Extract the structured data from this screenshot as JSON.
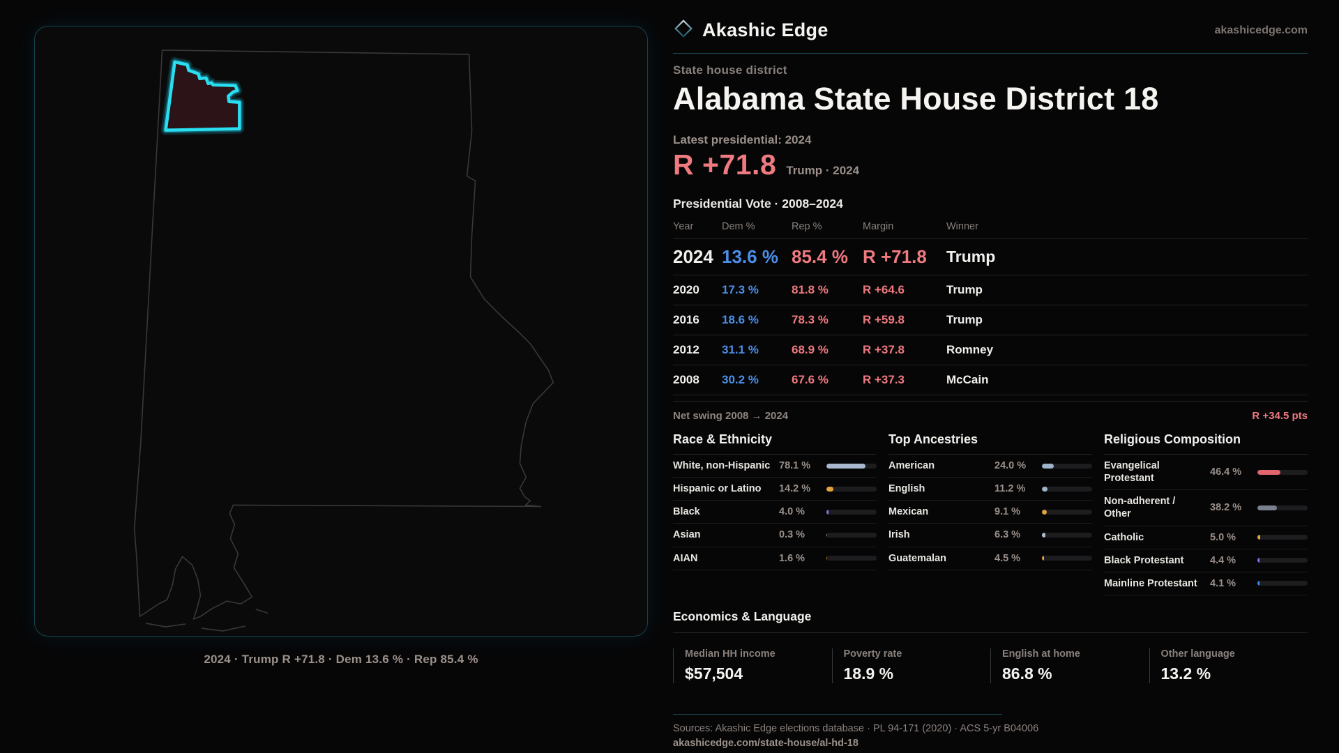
{
  "brand": {
    "name": "Akashic Edge",
    "site": "akashicedge.com"
  },
  "header": {
    "kicker": "State house district",
    "title": "Alabama State House District 18"
  },
  "latest": {
    "label": "Latest presidential: 2024",
    "margin": "R +71.8",
    "detail": "Trump · 2024"
  },
  "table": {
    "title": "Presidential Vote · 2008–2024",
    "columns": [
      "Year",
      "Dem %",
      "Rep %",
      "Margin",
      "Winner"
    ],
    "rows": [
      {
        "year": "2024",
        "dem": "13.6 %",
        "rep": "85.4 %",
        "margin": "R +71.8",
        "winner": "Trump",
        "featured": true
      },
      {
        "year": "2020",
        "dem": "17.3 %",
        "rep": "81.8 %",
        "margin": "R +64.6",
        "winner": "Trump",
        "featured": false
      },
      {
        "year": "2016",
        "dem": "18.6 %",
        "rep": "78.3 %",
        "margin": "R +59.8",
        "winner": "Trump",
        "featured": false
      },
      {
        "year": "2012",
        "dem": "31.1 %",
        "rep": "68.9 %",
        "margin": "R +37.8",
        "winner": "Romney",
        "featured": false
      },
      {
        "year": "2008",
        "dem": "30.2 %",
        "rep": "67.6 %",
        "margin": "R +37.3",
        "winner": "McCain",
        "featured": false
      }
    ]
  },
  "net_swing": {
    "label": "Net swing 2008 → 2024",
    "value": "R +34.5 pts"
  },
  "demographics": [
    {
      "title": "Race & Ethnicity",
      "rows": [
        {
          "label": "White, non-Hispanic",
          "value": "78.1 %",
          "pct": 78.1,
          "color": "#a9b8cf"
        },
        {
          "label": "Hispanic or Latino",
          "value": "14.2 %",
          "pct": 14.2,
          "color": "#e2a33e"
        },
        {
          "label": "Black",
          "value": "4.0 %",
          "pct": 4.0,
          "color": "#8577f0"
        },
        {
          "label": "Asian",
          "value": "0.3 %",
          "pct": 0.3,
          "color": "#8b97a8"
        },
        {
          "label": "AIAN",
          "value": "1.6 %",
          "pct": 1.6,
          "color": "#c07a1e"
        }
      ]
    },
    {
      "title": "Top Ancestries",
      "rows": [
        {
          "label": "American",
          "value": "24.0 %",
          "pct": 24.0,
          "color": "#9fb3ca"
        },
        {
          "label": "English",
          "value": "11.2 %",
          "pct": 11.2,
          "color": "#9fb3ca"
        },
        {
          "label": "Mexican",
          "value": "9.1 %",
          "pct": 9.1,
          "color": "#e2a33e"
        },
        {
          "label": "Irish",
          "value": "6.3 %",
          "pct": 6.3,
          "color": "#aebdd2"
        },
        {
          "label": "Guatemalan",
          "value": "4.5 %",
          "pct": 4.5,
          "color": "#e2a33e"
        }
      ]
    },
    {
      "title": "Religious Composition",
      "rows": [
        {
          "label": "Evangelical Protestant",
          "value": "46.4 %",
          "pct": 46.4,
          "color": "#e2646e"
        },
        {
          "label": "Non-adherent / Other",
          "value": "38.2 %",
          "pct": 38.2,
          "color": "#79818f"
        },
        {
          "label": "Catholic",
          "value": "5.0 %",
          "pct": 5.0,
          "color": "#e2a33e"
        },
        {
          "label": "Black Protestant",
          "value": "4.4 %",
          "pct": 4.4,
          "color": "#8577f0"
        },
        {
          "label": "Mainline Protestant",
          "value": "4.1 %",
          "pct": 4.1,
          "color": "#3f8be8"
        }
      ]
    }
  ],
  "economics": {
    "title": "Economics & Language",
    "stats": [
      {
        "label": "Median HH income",
        "value": "$57,504"
      },
      {
        "label": "Poverty rate",
        "value": "18.9 %"
      },
      {
        "label": "English at home",
        "value": "86.8 %"
      },
      {
        "label": "Other language",
        "value": "13.2 %"
      }
    ]
  },
  "sources": {
    "line1": "Sources: Akashic Edge elections database · PL 94-171 (2020) · ACS 5-yr B04006",
    "line2": "akashicedge.com/state-house/al-hd-18"
  },
  "map": {
    "caption": "2024 · Trump R +71.8 · Dem 13.6 % · Rep 85.4 %"
  },
  "colors": {
    "republican": "#ef7a80",
    "democrat": "#4c8fe9",
    "accent_cyan": "#27d9ef",
    "district_fill": "#2b1317",
    "state_outline": "#3a3739",
    "divider_teal": "#1c4954"
  }
}
